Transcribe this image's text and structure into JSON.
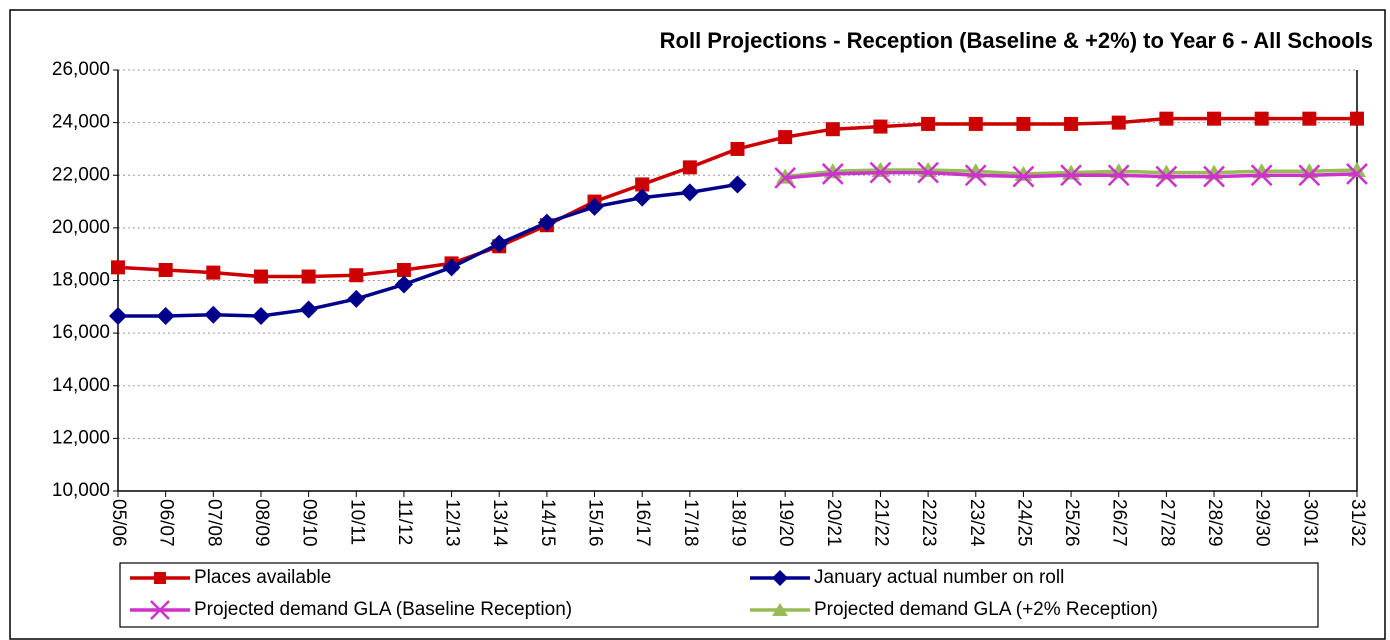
{
  "chart_data": {
    "type": "line",
    "title": "Roll Projections - Reception (Baseline & +2%)  to Year 6 - All Schools",
    "categories": [
      "05/06",
      "06/07",
      "07/08",
      "08/09",
      "09/10",
      "10/11",
      "11/12",
      "12/13",
      "13/14",
      "14/15",
      "15/16",
      "16/17",
      "17/18",
      "18/19",
      "19/20",
      "20/21",
      "21/22",
      "22/23",
      "23/24",
      "24/25",
      "25/26",
      "26/27",
      "27/28",
      "28/29",
      "29/30",
      "30/31",
      "31/32"
    ],
    "series": [
      {
        "name": "Places available",
        "color": "#cc0000",
        "marker": "square",
        "values": [
          18500,
          18400,
          18300,
          18150,
          18150,
          18200,
          18400,
          18650,
          19300,
          20100,
          21000,
          21650,
          22300,
          23000,
          23450,
          23750,
          23850,
          23950,
          23950,
          23950,
          23950,
          24000,
          24150,
          24150,
          24150,
          24150,
          24150
        ]
      },
      {
        "name": "January actual number on roll",
        "color": "#00008b",
        "marker": "diamond",
        "values": [
          16650,
          16650,
          16700,
          16650,
          16900,
          17300,
          17850,
          18500,
          19400,
          20200,
          20800,
          21150,
          21350,
          21650,
          null,
          null,
          null,
          null,
          null,
          null,
          null,
          null,
          null,
          null,
          null,
          null,
          null
        ]
      },
      {
        "name": "Projected demand GLA (Baseline Reception)",
        "color": "#cc33cc",
        "marker": "x",
        "values": [
          null,
          null,
          null,
          null,
          null,
          null,
          null,
          null,
          null,
          null,
          null,
          null,
          null,
          null,
          21900,
          22050,
          22100,
          22100,
          22000,
          21950,
          22000,
          22000,
          21950,
          21950,
          22000,
          22000,
          22050
        ]
      },
      {
        "name": "Projected demand GLA (+2%  Reception)",
        "color": "#99bb55",
        "marker": "triangle",
        "values": [
          null,
          null,
          null,
          null,
          null,
          null,
          null,
          null,
          null,
          null,
          null,
          null,
          null,
          null,
          21950,
          22150,
          22200,
          22200,
          22150,
          22050,
          22100,
          22150,
          22100,
          22100,
          22150,
          22150,
          22200
        ]
      }
    ],
    "ylim": [
      10000,
      26000
    ],
    "yticks": [
      {
        "value": 10000,
        "label": "10,000"
      },
      {
        "value": 12000,
        "label": "12,000"
      },
      {
        "value": 14000,
        "label": "14,000"
      },
      {
        "value": 16000,
        "label": "16,000"
      },
      {
        "value": 18000,
        "label": "18,000"
      },
      {
        "value": 20000,
        "label": "20,000"
      },
      {
        "value": 22000,
        "label": "22,000"
      },
      {
        "value": 24000,
        "label": "24,000"
      },
      {
        "value": 26000,
        "label": "26,000"
      }
    ],
    "grid": true,
    "legend": "bottom"
  }
}
